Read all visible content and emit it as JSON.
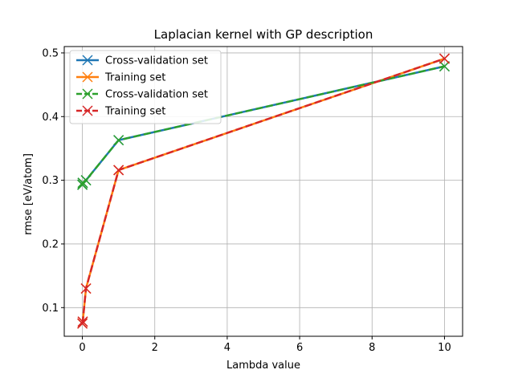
{
  "chart_data": {
    "type": "line",
    "title": "Laplacian kernel with GP description",
    "xlabel": "Lambda value",
    "ylabel": "rmse [eV/atom]",
    "xlim": [
      -0.5,
      10.5
    ],
    "ylim": [
      0.055,
      0.51
    ],
    "xticks": [
      0,
      2,
      4,
      6,
      8,
      10
    ],
    "yticks": [
      0.1,
      0.2,
      0.3,
      0.4,
      0.5
    ],
    "grid": true,
    "legend_position": "top-left",
    "series": [
      {
        "name": "Cross-validation set",
        "color": "#1f77b4",
        "linestyle": "solid",
        "marker": "x",
        "x": [
          0.001,
          0.01,
          0.1,
          1,
          10
        ],
        "y": [
          0.293,
          0.296,
          0.3,
          0.363,
          0.479
        ]
      },
      {
        "name": "Training set",
        "color": "#ff7f0e",
        "linestyle": "solid",
        "marker": "x",
        "x": [
          0.001,
          0.01,
          0.1,
          1,
          10
        ],
        "y": [
          0.075,
          0.078,
          0.13,
          0.316,
          0.491
        ]
      },
      {
        "name": "Cross-validation set",
        "color": "#2ca02c",
        "linestyle": "dashed",
        "marker": "x",
        "x": [
          0.001,
          0.01,
          0.1,
          1,
          10
        ],
        "y": [
          0.293,
          0.296,
          0.3,
          0.363,
          0.479
        ]
      },
      {
        "name": "Training set",
        "color": "#d62728",
        "linestyle": "dashed",
        "marker": "x",
        "x": [
          0.001,
          0.01,
          0.1,
          1,
          10
        ],
        "y": [
          0.075,
          0.078,
          0.13,
          0.316,
          0.491
        ]
      }
    ]
  }
}
